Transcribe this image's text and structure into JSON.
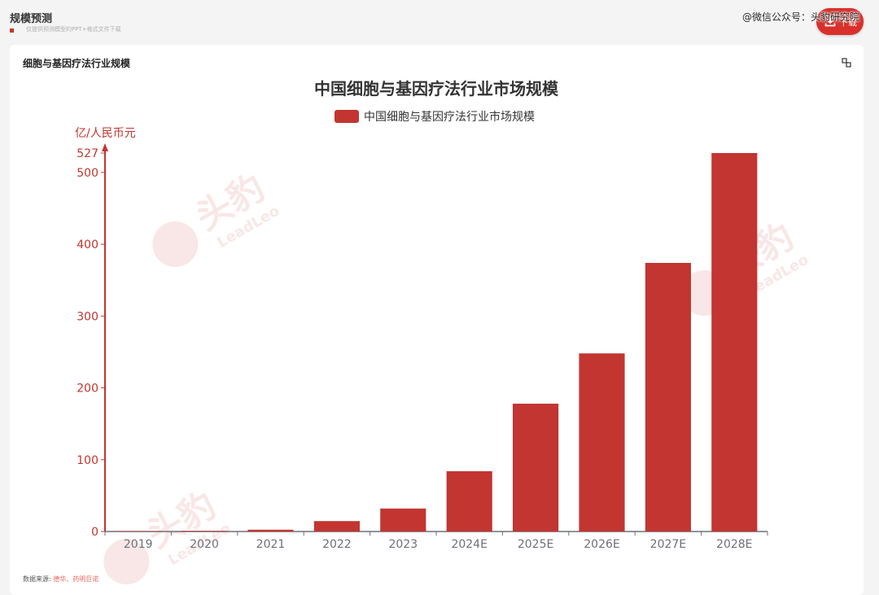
{
  "header": {
    "title": "规模预测",
    "subtitle": "仅提供预测模型的PPT+格式文件下载",
    "download_label": "下载",
    "watermark": "@微信公众号：头豹研究院"
  },
  "card": {
    "title": "细胞与基因疗法行业规模",
    "source_label": "数据来源:",
    "source_value": "德华、药明巨诺"
  },
  "brand_watermark": {
    "name": "头豹",
    "latin": "LeadLeo"
  },
  "colors": {
    "bar": "#c23531",
    "axis": "#c23531",
    "accent": "#d9302c"
  },
  "chart_data": {
    "type": "bar",
    "title": "中国细胞与基因疗法行业市场规模",
    "ylabel": "亿/人民币元",
    "xlabel": "",
    "categories": [
      "2019",
      "2020",
      "2021",
      "2022",
      "2023",
      "2024E",
      "2025E",
      "2026E",
      "2027E",
      "2028E"
    ],
    "series": [
      {
        "name": "中国细胞与基因疗法行业市场规模",
        "values": [
          0.5,
          0.9,
          2.5,
          14.5,
          32,
          84,
          178,
          248,
          374,
          527
        ]
      }
    ],
    "ylim": [
      0,
      527
    ],
    "yticks": [
      0,
      100,
      200,
      300,
      400,
      500,
      527
    ],
    "grid": false,
    "legend": "top-center"
  }
}
